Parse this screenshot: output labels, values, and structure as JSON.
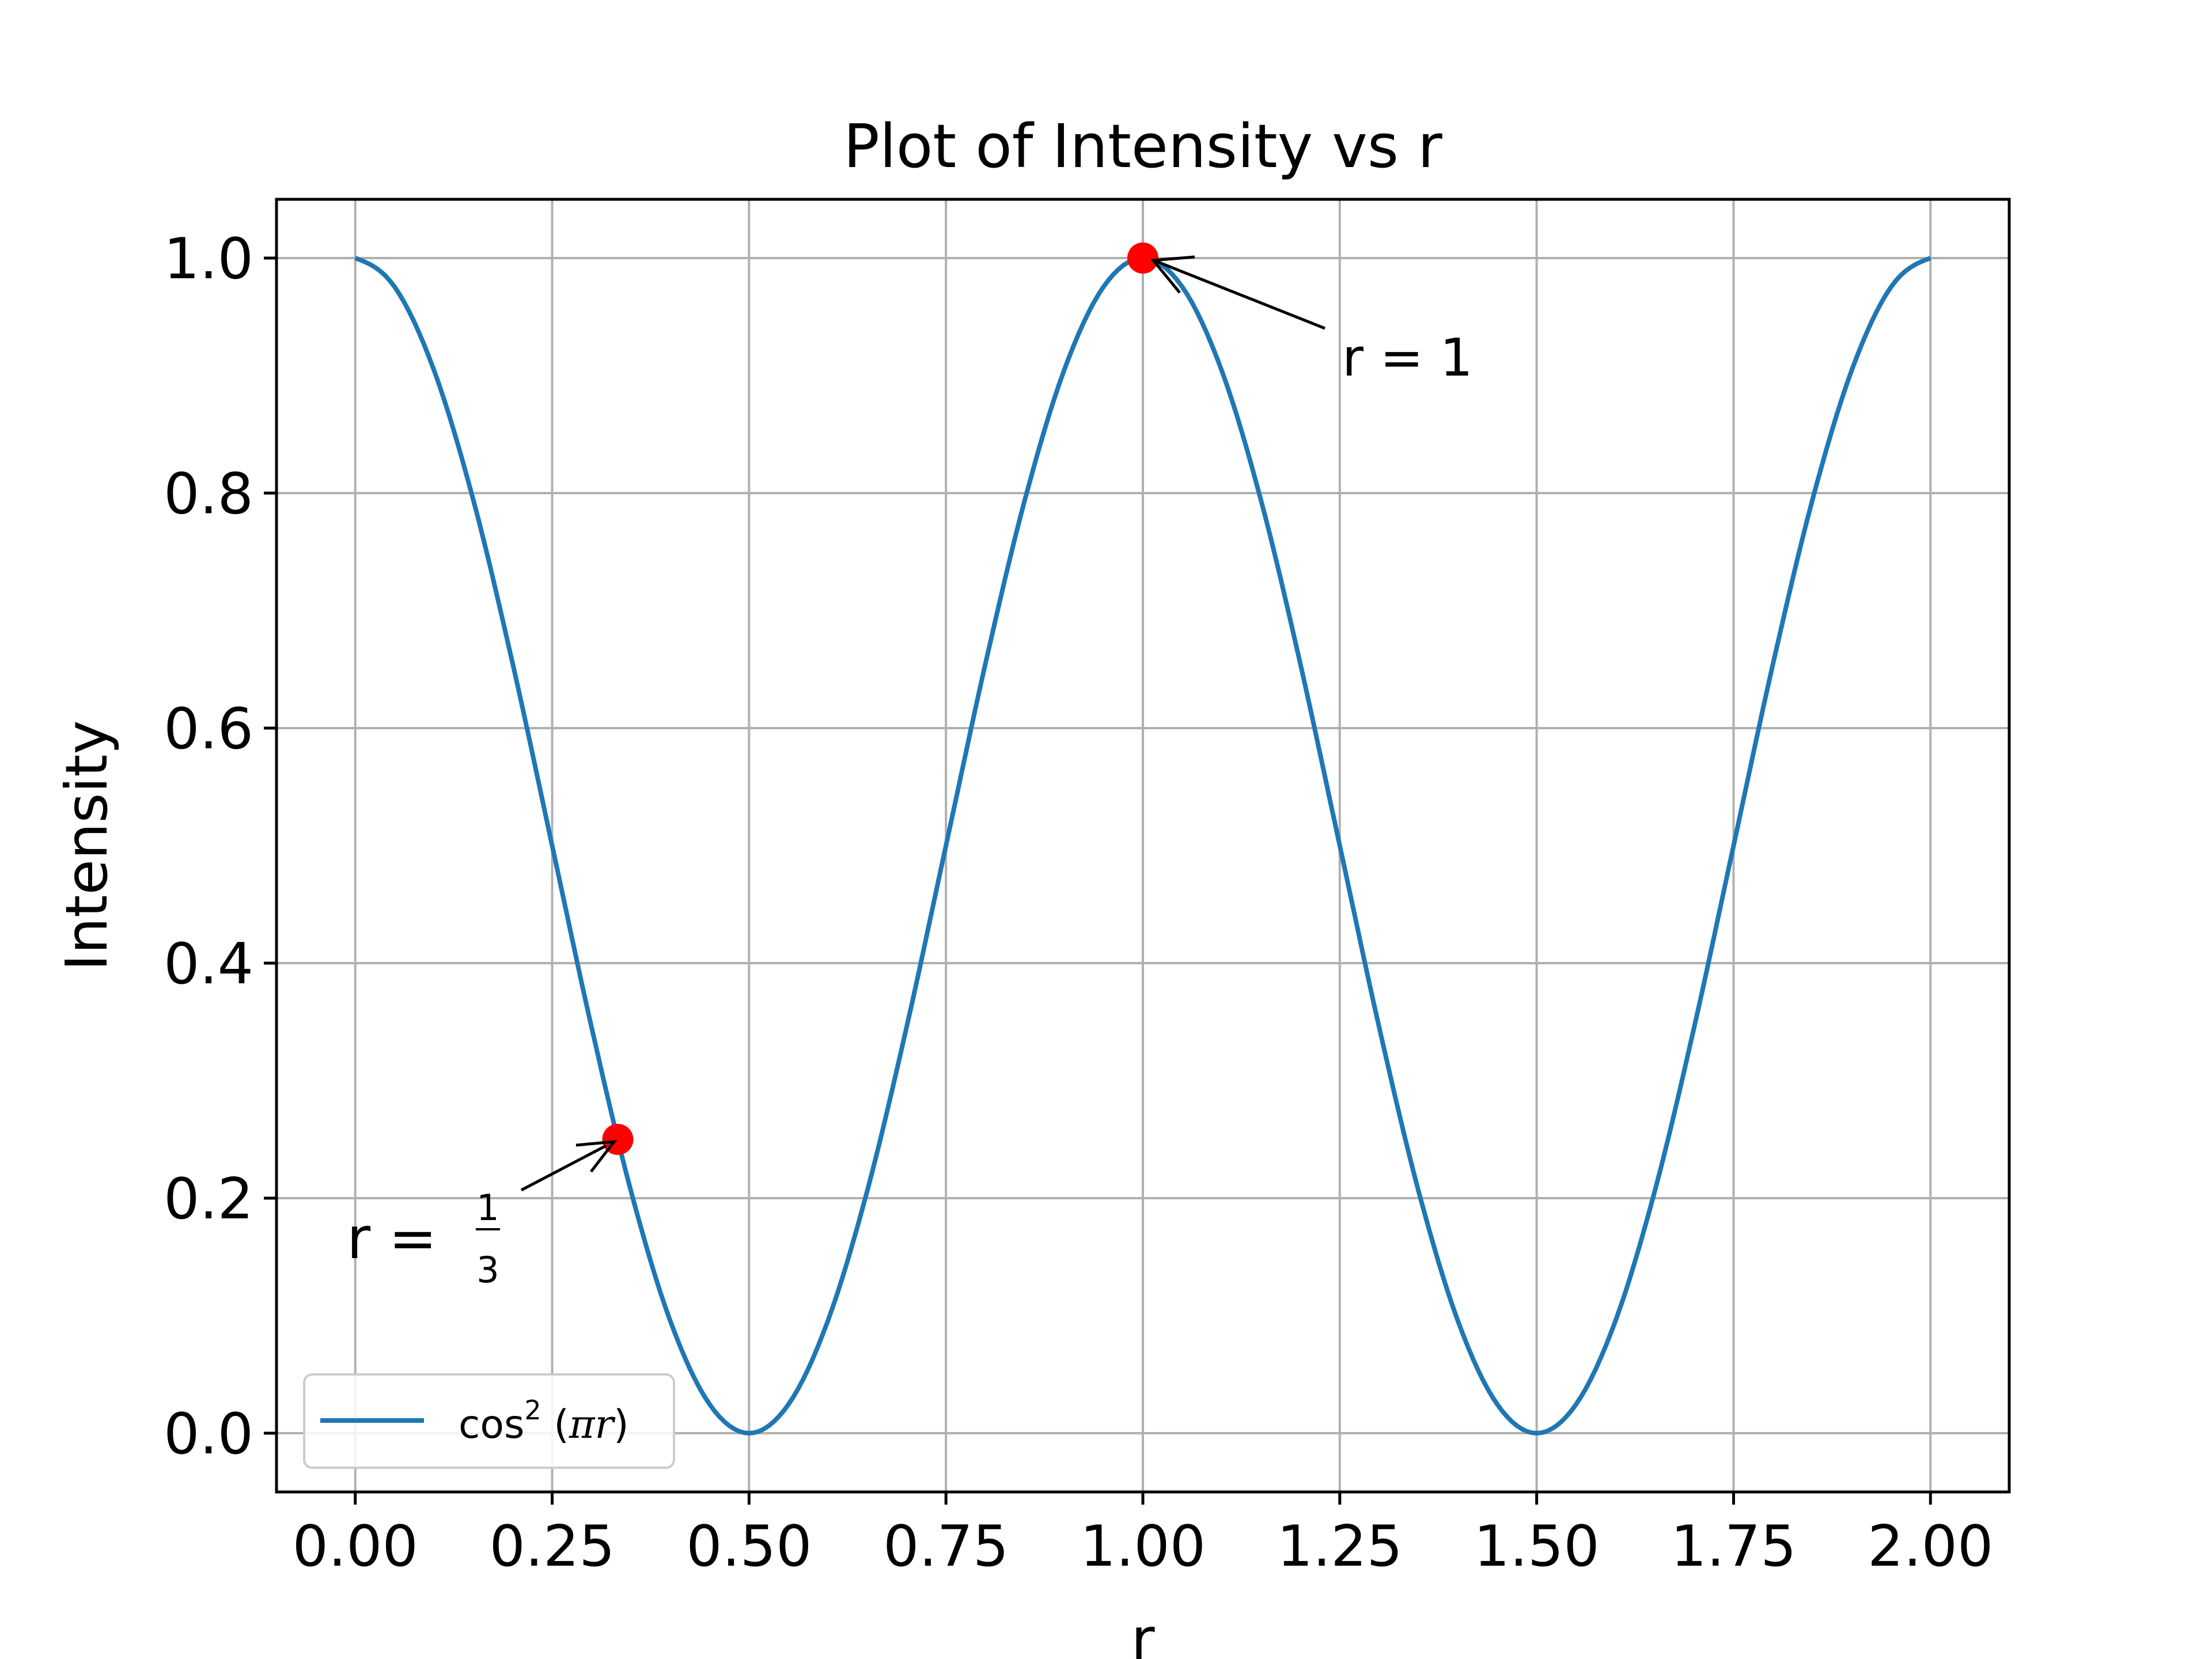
{
  "chart_data": {
    "type": "line",
    "title": "Plot of Intensity vs r",
    "xlabel": "r",
    "ylabel": "Intensity",
    "xlim": [
      -0.1,
      2.1
    ],
    "ylim": [
      -0.05,
      1.05
    ],
    "xticks": [
      0.0,
      0.25,
      0.5,
      0.75,
      1.0,
      1.25,
      1.5,
      1.75,
      2.0
    ],
    "xtick_labels": [
      "0.00",
      "0.25",
      "0.50",
      "0.75",
      "1.00",
      "1.25",
      "1.50",
      "1.75",
      "2.00"
    ],
    "yticks": [
      0.0,
      0.2,
      0.4,
      0.6,
      0.8,
      1.0
    ],
    "ytick_labels": [
      "0.0",
      "0.2",
      "0.4",
      "0.6",
      "0.8",
      "1.0"
    ],
    "grid": true,
    "legend_position": "lower-left",
    "series": [
      {
        "name": "cos²(πr)",
        "legend": {
          "func": "cos",
          "power": "2",
          "open": " (",
          "pi": "π",
          "var": "r",
          "close": ")"
        },
        "color": "#1f77b4",
        "x": [
          0.0,
          0.05,
          0.1,
          0.15,
          0.2,
          0.25,
          0.3,
          0.35,
          0.4,
          0.45,
          0.5,
          0.55,
          0.6,
          0.65,
          0.7,
          0.75,
          0.8,
          0.85,
          0.9,
          0.95,
          1.0,
          1.05,
          1.1,
          1.15,
          1.2,
          1.25,
          1.3,
          1.35,
          1.4,
          1.45,
          1.5,
          1.55,
          1.6,
          1.65,
          1.7,
          1.75,
          1.8,
          1.85,
          1.9,
          1.95,
          2.0
        ],
        "y": [
          1.0,
          0.9755,
          0.9045,
          0.7939,
          0.6545,
          0.5,
          0.3455,
          0.2061,
          0.0955,
          0.0245,
          0.0,
          0.0245,
          0.0955,
          0.2061,
          0.3455,
          0.5,
          0.6545,
          0.7939,
          0.9045,
          0.9755,
          1.0,
          0.9755,
          0.9045,
          0.7939,
          0.6545,
          0.5,
          0.3455,
          0.2061,
          0.0955,
          0.0245,
          0.0,
          0.0245,
          0.0955,
          0.2061,
          0.3455,
          0.5,
          0.6545,
          0.7939,
          0.9045,
          0.9755,
          1.0
        ]
      }
    ],
    "highlight_points": [
      {
        "x": 0.3333,
        "y": 0.25,
        "color": "#ff0000"
      },
      {
        "x": 1.0,
        "y": 1.0,
        "color": "#ff0000"
      }
    ],
    "annotations": [
      {
        "prefix": "r = ",
        "num": "1",
        "den": "3",
        "point_x": 0.3333,
        "point_y": 0.25
      },
      {
        "text": "r = 1",
        "point_x": 1.0,
        "point_y": 1.0
      }
    ]
  }
}
